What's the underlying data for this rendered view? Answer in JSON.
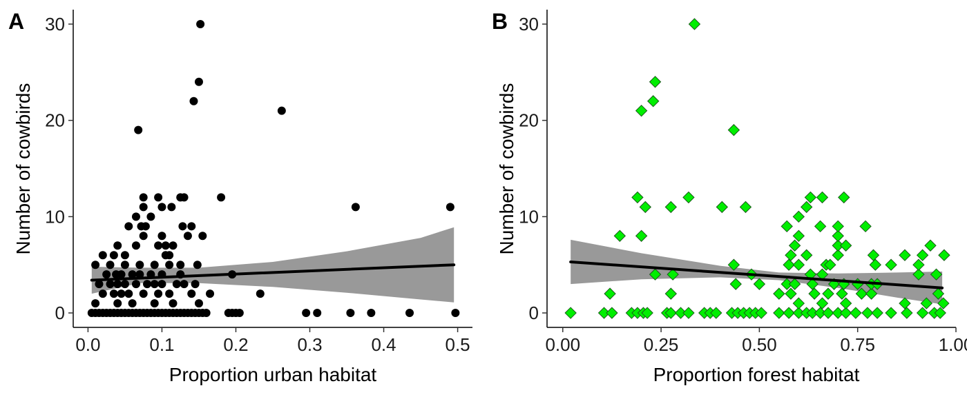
{
  "chart_data": [
    {
      "type": "scatter",
      "panel_label": "A",
      "xlabel": "Proportion urban habitat",
      "ylabel": "Number of cowbirds",
      "xlim": [
        -0.02,
        0.52
      ],
      "ylim": [
        -1.5,
        31.5
      ],
      "xticks": [
        0,
        0.1,
        0.2,
        0.3,
        0.4,
        0.5
      ],
      "xtick_labels": [
        "0.0",
        "0.1",
        "0.2",
        "0.3",
        "0.4",
        "0.5"
      ],
      "yticks": [
        0,
        10,
        20,
        30
      ],
      "ytick_labels": [
        "0",
        "10",
        "20",
        "30"
      ],
      "grid": false,
      "marker": "circle",
      "point_color": "#000000",
      "ribbon_color": "#999999",
      "trend": {
        "x": [
          0.005,
          0.495
        ],
        "y": [
          3.4,
          5.0
        ]
      },
      "ribbon": {
        "x": [
          0.005,
          0.07,
          0.15,
          0.25,
          0.35,
          0.45,
          0.495
        ],
        "lower": [
          2.0,
          3.1,
          3.1,
          2.7,
          2.1,
          1.4,
          1.1
        ],
        "upper": [
          4.8,
          4.7,
          4.7,
          5.3,
          6.4,
          7.8,
          8.9
        ]
      },
      "points": [
        [
          0.005,
          0
        ],
        [
          0.01,
          0
        ],
        [
          0.015,
          0
        ],
        [
          0.02,
          0
        ],
        [
          0.025,
          0
        ],
        [
          0.03,
          0
        ],
        [
          0.035,
          0
        ],
        [
          0.04,
          0
        ],
        [
          0.045,
          0
        ],
        [
          0.05,
          0
        ],
        [
          0.055,
          0
        ],
        [
          0.06,
          0
        ],
        [
          0.065,
          0
        ],
        [
          0.07,
          0
        ],
        [
          0.075,
          0
        ],
        [
          0.08,
          0
        ],
        [
          0.085,
          0
        ],
        [
          0.09,
          0
        ],
        [
          0.095,
          0
        ],
        [
          0.1,
          0
        ],
        [
          0.105,
          0
        ],
        [
          0.11,
          0
        ],
        [
          0.115,
          0
        ],
        [
          0.12,
          0
        ],
        [
          0.125,
          0
        ],
        [
          0.13,
          0
        ],
        [
          0.135,
          0
        ],
        [
          0.14,
          0
        ],
        [
          0.145,
          0
        ],
        [
          0.15,
          0
        ],
        [
          0.155,
          0
        ],
        [
          0.16,
          0
        ],
        [
          0.19,
          0
        ],
        [
          0.195,
          0
        ],
        [
          0.2,
          0
        ],
        [
          0.205,
          0
        ],
        [
          0.295,
          0
        ],
        [
          0.31,
          0
        ],
        [
          0.355,
          0
        ],
        [
          0.383,
          0
        ],
        [
          0.435,
          0
        ],
        [
          0.497,
          0
        ],
        [
          0.01,
          1
        ],
        [
          0.04,
          1
        ],
        [
          0.06,
          1
        ],
        [
          0.09,
          1
        ],
        [
          0.115,
          1
        ],
        [
          0.15,
          1
        ],
        [
          0.02,
          2
        ],
        [
          0.035,
          2
        ],
        [
          0.045,
          2
        ],
        [
          0.055,
          2
        ],
        [
          0.075,
          2
        ],
        [
          0.095,
          2
        ],
        [
          0.11,
          2
        ],
        [
          0.14,
          2
        ],
        [
          0.165,
          2
        ],
        [
          0.233,
          2
        ],
        [
          0.015,
          3
        ],
        [
          0.03,
          3
        ],
        [
          0.04,
          3
        ],
        [
          0.05,
          3
        ],
        [
          0.065,
          3
        ],
        [
          0.08,
          3
        ],
        [
          0.09,
          3
        ],
        [
          0.1,
          3
        ],
        [
          0.12,
          3
        ],
        [
          0.13,
          3
        ],
        [
          0.145,
          3
        ],
        [
          0.025,
          4
        ],
        [
          0.038,
          4
        ],
        [
          0.045,
          4
        ],
        [
          0.06,
          4
        ],
        [
          0.07,
          4
        ],
        [
          0.085,
          4
        ],
        [
          0.1,
          4
        ],
        [
          0.125,
          4
        ],
        [
          0.195,
          4
        ],
        [
          0.01,
          5
        ],
        [
          0.03,
          5
        ],
        [
          0.05,
          5
        ],
        [
          0.07,
          5
        ],
        [
          0.09,
          5
        ],
        [
          0.11,
          5
        ],
        [
          0.125,
          5
        ],
        [
          0.148,
          5
        ],
        [
          0.02,
          6
        ],
        [
          0.035,
          6
        ],
        [
          0.05,
          6
        ],
        [
          0.105,
          6
        ],
        [
          0.11,
          6
        ],
        [
          0.04,
          7
        ],
        [
          0.065,
          7
        ],
        [
          0.095,
          7
        ],
        [
          0.105,
          7
        ],
        [
          0.115,
          7
        ],
        [
          0.075,
          8
        ],
        [
          0.1,
          8
        ],
        [
          0.135,
          8
        ],
        [
          0.155,
          8
        ],
        [
          0.055,
          9
        ],
        [
          0.072,
          9
        ],
        [
          0.078,
          9
        ],
        [
          0.128,
          9
        ],
        [
          0.14,
          9
        ],
        [
          0.065,
          10
        ],
        [
          0.085,
          10
        ],
        [
          0.075,
          11
        ],
        [
          0.1,
          11
        ],
        [
          0.113,
          11
        ],
        [
          0.362,
          11
        ],
        [
          0.49,
          11
        ],
        [
          0.075,
          12
        ],
        [
          0.095,
          12
        ],
        [
          0.125,
          12
        ],
        [
          0.13,
          12
        ],
        [
          0.18,
          12
        ],
        [
          0.068,
          19
        ],
        [
          0.262,
          21
        ],
        [
          0.143,
          22
        ],
        [
          0.15,
          24
        ],
        [
          0.152,
          30
        ]
      ]
    },
    {
      "type": "scatter",
      "panel_label": "B",
      "xlabel": "Proportion forest habitat",
      "ylabel": "Number of cowbirds",
      "xlim": [
        -0.04,
        1.0
      ],
      "ylim": [
        -1.5,
        31.5
      ],
      "xticks": [
        0,
        0.25,
        0.5,
        0.75,
        1.0
      ],
      "xtick_labels": [
        "0.00",
        "0.25",
        "0.50",
        "0.75",
        "1.00"
      ],
      "yticks": [
        0,
        10,
        20,
        30
      ],
      "ytick_labels": [
        "0",
        "10",
        "20",
        "30"
      ],
      "grid": false,
      "marker": "diamond",
      "point_color": "#00ee00",
      "ribbon_color": "#999999",
      "trend": {
        "x": [
          0.02,
          0.965
        ],
        "y": [
          5.3,
          2.6
        ]
      },
      "ribbon": {
        "x": [
          0.02,
          0.2,
          0.4,
          0.55,
          0.7,
          0.85,
          0.965
        ],
        "lower": [
          3.0,
          3.5,
          3.7,
          3.4,
          2.6,
          1.6,
          0.9
        ],
        "upper": [
          7.6,
          6.2,
          4.9,
          4.2,
          4.1,
          4.2,
          4.3
        ]
      },
      "points": [
        [
          0.02,
          0
        ],
        [
          0.105,
          0
        ],
        [
          0.125,
          0
        ],
        [
          0.175,
          0
        ],
        [
          0.19,
          0
        ],
        [
          0.205,
          0
        ],
        [
          0.215,
          0
        ],
        [
          0.265,
          0
        ],
        [
          0.275,
          0
        ],
        [
          0.3,
          0
        ],
        [
          0.32,
          0
        ],
        [
          0.36,
          0
        ],
        [
          0.375,
          0
        ],
        [
          0.39,
          0
        ],
        [
          0.43,
          0
        ],
        [
          0.445,
          0
        ],
        [
          0.46,
          0
        ],
        [
          0.475,
          0
        ],
        [
          0.49,
          0
        ],
        [
          0.505,
          0
        ],
        [
          0.55,
          0
        ],
        [
          0.575,
          0
        ],
        [
          0.6,
          0
        ],
        [
          0.62,
          0
        ],
        [
          0.635,
          0
        ],
        [
          0.655,
          0
        ],
        [
          0.675,
          0
        ],
        [
          0.7,
          0
        ],
        [
          0.72,
          0
        ],
        [
          0.745,
          0
        ],
        [
          0.775,
          0
        ],
        [
          0.8,
          0
        ],
        [
          0.835,
          0
        ],
        [
          0.875,
          0
        ],
        [
          0.915,
          0
        ],
        [
          0.945,
          0
        ],
        [
          0.96,
          0
        ],
        [
          0.6,
          1
        ],
        [
          0.66,
          1
        ],
        [
          0.72,
          1
        ],
        [
          0.87,
          1
        ],
        [
          0.925,
          1
        ],
        [
          0.968,
          1
        ],
        [
          0.12,
          2
        ],
        [
          0.275,
          2
        ],
        [
          0.55,
          2
        ],
        [
          0.58,
          2
        ],
        [
          0.64,
          2
        ],
        [
          0.675,
          2
        ],
        [
          0.71,
          2
        ],
        [
          0.76,
          2
        ],
        [
          0.785,
          2
        ],
        [
          0.955,
          2
        ],
        [
          0.44,
          3
        ],
        [
          0.5,
          3
        ],
        [
          0.57,
          3
        ],
        [
          0.59,
          3
        ],
        [
          0.635,
          3
        ],
        [
          0.69,
          3
        ],
        [
          0.715,
          3
        ],
        [
          0.75,
          3
        ],
        [
          0.785,
          3
        ],
        [
          0.8,
          3
        ],
        [
          0.235,
          4
        ],
        [
          0.28,
          4
        ],
        [
          0.48,
          4
        ],
        [
          0.63,
          4
        ],
        [
          0.66,
          4
        ],
        [
          0.905,
          4
        ],
        [
          0.95,
          4
        ],
        [
          0.435,
          5
        ],
        [
          0.575,
          5
        ],
        [
          0.6,
          5
        ],
        [
          0.67,
          5
        ],
        [
          0.68,
          5
        ],
        [
          0.795,
          5
        ],
        [
          0.835,
          5
        ],
        [
          0.905,
          5
        ],
        [
          0.58,
          6
        ],
        [
          0.62,
          6
        ],
        [
          0.7,
          6
        ],
        [
          0.79,
          6
        ],
        [
          0.87,
          6
        ],
        [
          0.915,
          6
        ],
        [
          0.97,
          6
        ],
        [
          0.59,
          7
        ],
        [
          0.7,
          7
        ],
        [
          0.72,
          7
        ],
        [
          0.935,
          7
        ],
        [
          0.145,
          8
        ],
        [
          0.2,
          8
        ],
        [
          0.6,
          8
        ],
        [
          0.7,
          8
        ],
        [
          0.57,
          9
        ],
        [
          0.655,
          9
        ],
        [
          0.7,
          9
        ],
        [
          0.77,
          9
        ],
        [
          0.6,
          10
        ],
        [
          0.21,
          11
        ],
        [
          0.275,
          11
        ],
        [
          0.405,
          11
        ],
        [
          0.465,
          11
        ],
        [
          0.62,
          11
        ],
        [
          0.19,
          12
        ],
        [
          0.32,
          12
        ],
        [
          0.63,
          12
        ],
        [
          0.66,
          12
        ],
        [
          0.715,
          12
        ],
        [
          0.435,
          19
        ],
        [
          0.2,
          21
        ],
        [
          0.23,
          22
        ],
        [
          0.235,
          24
        ],
        [
          0.335,
          30
        ]
      ]
    }
  ]
}
